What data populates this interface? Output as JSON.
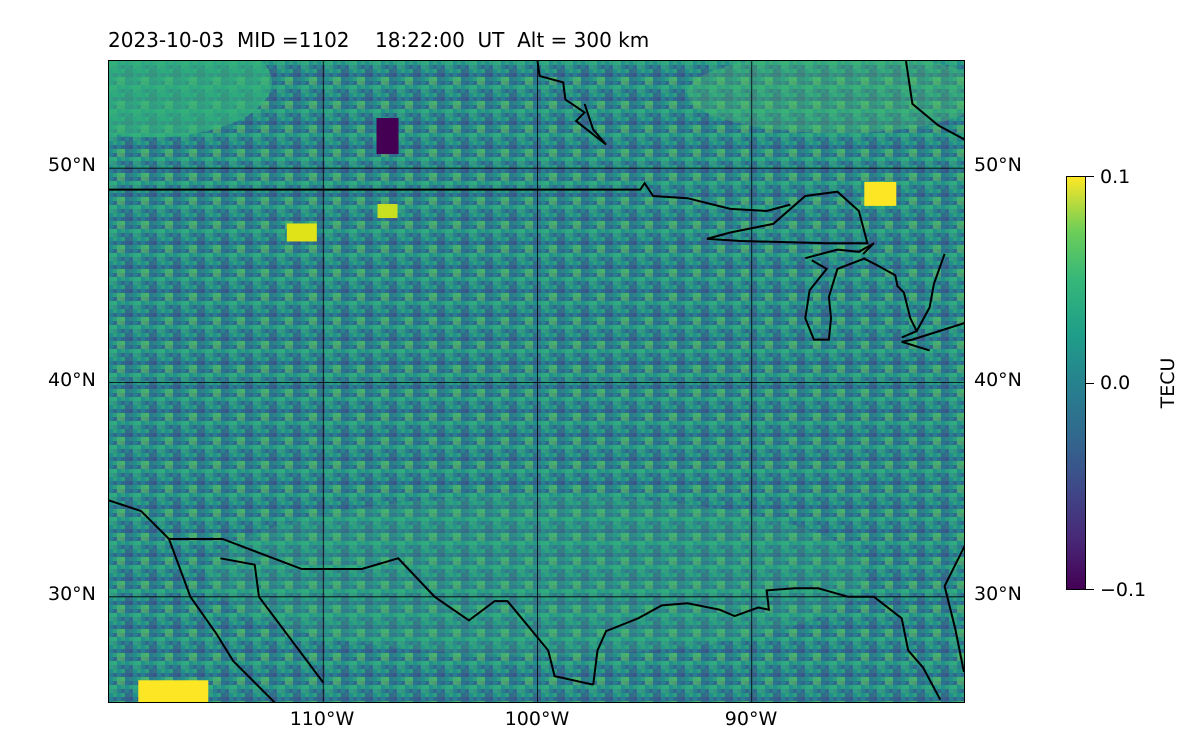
{
  "header": {
    "date": "2023-10-03",
    "mid_label": "MID =1102",
    "time": "18:22:00",
    "time_zone": "UT",
    "altitude": "Alt = 300 km"
  },
  "map": {
    "projection": "PlateCarree",
    "lon_range": [
      -120,
      -80
    ],
    "lat_range": [
      25,
      55
    ],
    "gridlines": true,
    "lat_ticks": [
      "50°N",
      "40°N",
      "30°N"
    ],
    "lon_ticks": [
      "110°W",
      "100°W",
      "90°W"
    ],
    "features": [
      "coastlines",
      "country-borders",
      "great-lakes"
    ],
    "hotspots": [
      {
        "label": "SW corner high",
        "lon": -117,
        "lat": 25.5
      },
      {
        "label": "Northern Wisconsin/Superior region",
        "lon": -84,
        "lat": 48.8
      },
      {
        "label": "Southern Alberta/Montana",
        "lon": -111,
        "lat": 47
      },
      {
        "label": "North Dakota",
        "lon": -107,
        "lat": 48
      },
      {
        "label": "Dark spot Saskatchewan",
        "lon": -107,
        "lat": 51.5
      }
    ]
  },
  "colorbar": {
    "label": "TECU",
    "ticks": [
      "0.1",
      "0.0",
      "−0.1"
    ],
    "vmin": -0.1,
    "vmax": 0.1,
    "colormap": "viridis"
  }
}
